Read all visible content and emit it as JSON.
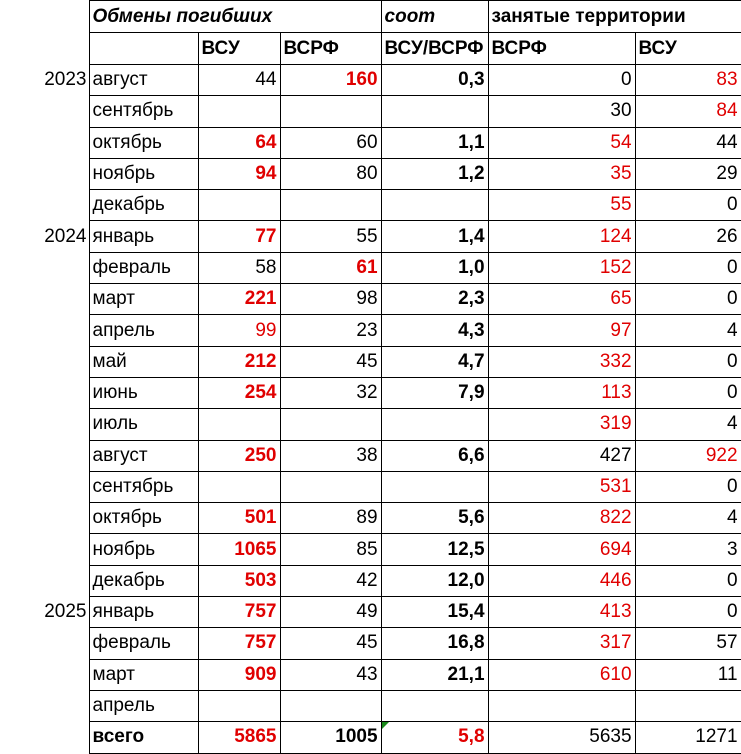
{
  "header": {
    "exchanges_title": "Обмены погибших",
    "ratio_title": "соот",
    "territory_title": "занятые территории"
  },
  "subheader": {
    "vsu": "ВСУ",
    "vsrf": "ВСРФ",
    "ratio": "ВСУ/ВСРФ",
    "terr_vsrf": "ВСРФ",
    "terr_vsu": "ВСУ"
  },
  "rows": [
    {
      "year": "2023",
      "month": "август",
      "vsu": "44",
      "vsrf": "160",
      "ratio": "0,3",
      "t_vsrf": "0",
      "t_vsu": "83",
      "vsu_red": false,
      "vsrf_red": true,
      "t_vsrf_red": false,
      "t_vsu_red": true,
      "vsu_bold": false,
      "vsrf_bold": true
    },
    {
      "year": "",
      "month": "сентябрь",
      "vsu": "",
      "vsrf": "",
      "ratio": "",
      "t_vsrf": "30",
      "t_vsu": "84",
      "vsu_red": false,
      "vsrf_red": false,
      "t_vsrf_red": false,
      "t_vsu_red": true,
      "vsu_bold": false,
      "vsrf_bold": false
    },
    {
      "year": "",
      "month": "октябрь",
      "vsu": "64",
      "vsrf": "60",
      "ratio": "1,1",
      "t_vsrf": "54",
      "t_vsu": "44",
      "vsu_red": true,
      "vsrf_red": false,
      "t_vsrf_red": true,
      "t_vsu_red": false,
      "vsu_bold": true,
      "vsrf_bold": false
    },
    {
      "year": "",
      "month": "ноябрь",
      "vsu": "94",
      "vsrf": "80",
      "ratio": "1,2",
      "t_vsrf": "35",
      "t_vsu": "29",
      "vsu_red": true,
      "vsrf_red": false,
      "t_vsrf_red": true,
      "t_vsu_red": false,
      "vsu_bold": true,
      "vsrf_bold": false
    },
    {
      "year": "",
      "month": "декабрь",
      "vsu": "",
      "vsrf": "",
      "ratio": "",
      "t_vsrf": "55",
      "t_vsu": "0",
      "vsu_red": false,
      "vsrf_red": false,
      "t_vsrf_red": true,
      "t_vsu_red": false,
      "vsu_bold": false,
      "vsrf_bold": false
    },
    {
      "year": "2024",
      "month": "январь",
      "vsu": "77",
      "vsrf": "55",
      "ratio": "1,4",
      "t_vsrf": "124",
      "t_vsu": "26",
      "vsu_red": true,
      "vsrf_red": false,
      "t_vsrf_red": true,
      "t_vsu_red": false,
      "vsu_bold": true,
      "vsrf_bold": false
    },
    {
      "year": "",
      "month": "февраль",
      "vsu": "58",
      "vsrf": "61",
      "ratio": "1,0",
      "t_vsrf": "152",
      "t_vsu": "0",
      "vsu_red": false,
      "vsrf_red": true,
      "t_vsrf_red": true,
      "t_vsu_red": false,
      "vsu_bold": false,
      "vsrf_bold": true
    },
    {
      "year": "",
      "month": "март",
      "vsu": "221",
      "vsrf": "98",
      "ratio": "2,3",
      "t_vsrf": "65",
      "t_vsu": "0",
      "vsu_red": true,
      "vsrf_red": false,
      "t_vsrf_red": true,
      "t_vsu_red": false,
      "vsu_bold": true,
      "vsrf_bold": false
    },
    {
      "year": "",
      "month": "апрель",
      "vsu": "99",
      "vsrf": "23",
      "ratio": "4,3",
      "t_vsrf": "97",
      "t_vsu": "4",
      "vsu_red": true,
      "vsrf_red": false,
      "t_vsrf_red": true,
      "t_vsu_red": false,
      "vsu_bold": false,
      "vsrf_bold": false
    },
    {
      "year": "",
      "month": "май",
      "vsu": "212",
      "vsrf": "45",
      "ratio": "4,7",
      "t_vsrf": "332",
      "t_vsu": "0",
      "vsu_red": true,
      "vsrf_red": false,
      "t_vsrf_red": true,
      "t_vsu_red": false,
      "vsu_bold": true,
      "vsrf_bold": false
    },
    {
      "year": "",
      "month": "июнь",
      "vsu": "254",
      "vsrf": "32",
      "ratio": "7,9",
      "t_vsrf": "113",
      "t_vsu": "0",
      "vsu_red": true,
      "vsrf_red": false,
      "t_vsrf_red": true,
      "t_vsu_red": false,
      "vsu_bold": true,
      "vsrf_bold": false
    },
    {
      "year": "",
      "month": "июль",
      "vsu": "",
      "vsrf": "",
      "ratio": "",
      "t_vsrf": "319",
      "t_vsu": "4",
      "vsu_red": false,
      "vsrf_red": false,
      "t_vsrf_red": true,
      "t_vsu_red": false,
      "vsu_bold": false,
      "vsrf_bold": false
    },
    {
      "year": "",
      "month": "август",
      "vsu": "250",
      "vsrf": "38",
      "ratio": "6,6",
      "t_vsrf": "427",
      "t_vsu": "922",
      "vsu_red": true,
      "vsrf_red": false,
      "t_vsrf_red": false,
      "t_vsu_red": true,
      "vsu_bold": true,
      "vsrf_bold": false
    },
    {
      "year": "",
      "month": "сентябрь",
      "vsu": "",
      "vsrf": "",
      "ratio": "",
      "t_vsrf": "531",
      "t_vsu": "0",
      "vsu_red": false,
      "vsrf_red": false,
      "t_vsrf_red": true,
      "t_vsu_red": false,
      "vsu_bold": false,
      "vsrf_bold": false
    },
    {
      "year": "",
      "month": "октябрь",
      "vsu": "501",
      "vsrf": "89",
      "ratio": "5,6",
      "t_vsrf": "822",
      "t_vsu": "4",
      "vsu_red": true,
      "vsrf_red": false,
      "t_vsrf_red": true,
      "t_vsu_red": false,
      "vsu_bold": true,
      "vsrf_bold": false
    },
    {
      "year": "",
      "month": "ноябрь",
      "vsu": "1065",
      "vsrf": "85",
      "ratio": "12,5",
      "t_vsrf": "694",
      "t_vsu": "3",
      "vsu_red": true,
      "vsrf_red": false,
      "t_vsrf_red": true,
      "t_vsu_red": false,
      "vsu_bold": true,
      "vsrf_bold": false
    },
    {
      "year": "",
      "month": "декабрь",
      "vsu": "503",
      "vsrf": "42",
      "ratio": "12,0",
      "t_vsrf": "446",
      "t_vsu": "0",
      "vsu_red": true,
      "vsrf_red": false,
      "t_vsrf_red": true,
      "t_vsu_red": false,
      "vsu_bold": true,
      "vsrf_bold": false
    },
    {
      "year": "2025",
      "month": "январь",
      "vsu": "757",
      "vsrf": "49",
      "ratio": "15,4",
      "t_vsrf": "413",
      "t_vsu": "0",
      "vsu_red": true,
      "vsrf_red": false,
      "t_vsrf_red": true,
      "t_vsu_red": false,
      "vsu_bold": true,
      "vsrf_bold": false
    },
    {
      "year": "",
      "month": "февраль",
      "vsu": "757",
      "vsrf": "45",
      "ratio": "16,8",
      "t_vsrf": "317",
      "t_vsu": "57",
      "vsu_red": true,
      "vsrf_red": false,
      "t_vsrf_red": true,
      "t_vsu_red": false,
      "vsu_bold": true,
      "vsrf_bold": false
    },
    {
      "year": "",
      "month": "март",
      "vsu": "909",
      "vsrf": "43",
      "ratio": "21,1",
      "t_vsrf": "610",
      "t_vsu": "11",
      "vsu_red": true,
      "vsrf_red": false,
      "t_vsrf_red": true,
      "t_vsu_red": false,
      "vsu_bold": true,
      "vsrf_bold": false
    },
    {
      "year": "",
      "month": "апрель",
      "vsu": "",
      "vsrf": "",
      "ratio": "",
      "t_vsrf": "",
      "t_vsu": "",
      "vsu_red": false,
      "vsrf_red": false,
      "t_vsrf_red": false,
      "t_vsu_red": false,
      "vsu_bold": false,
      "vsrf_bold": false
    }
  ],
  "total": {
    "label": "всего",
    "vsu": "5865",
    "vsrf": "1005",
    "ratio": "5,8",
    "t_vsrf": "5635",
    "t_vsu": "1271"
  },
  "colors": {
    "red": "#e00000",
    "note_flag": "#1a8a1a"
  }
}
